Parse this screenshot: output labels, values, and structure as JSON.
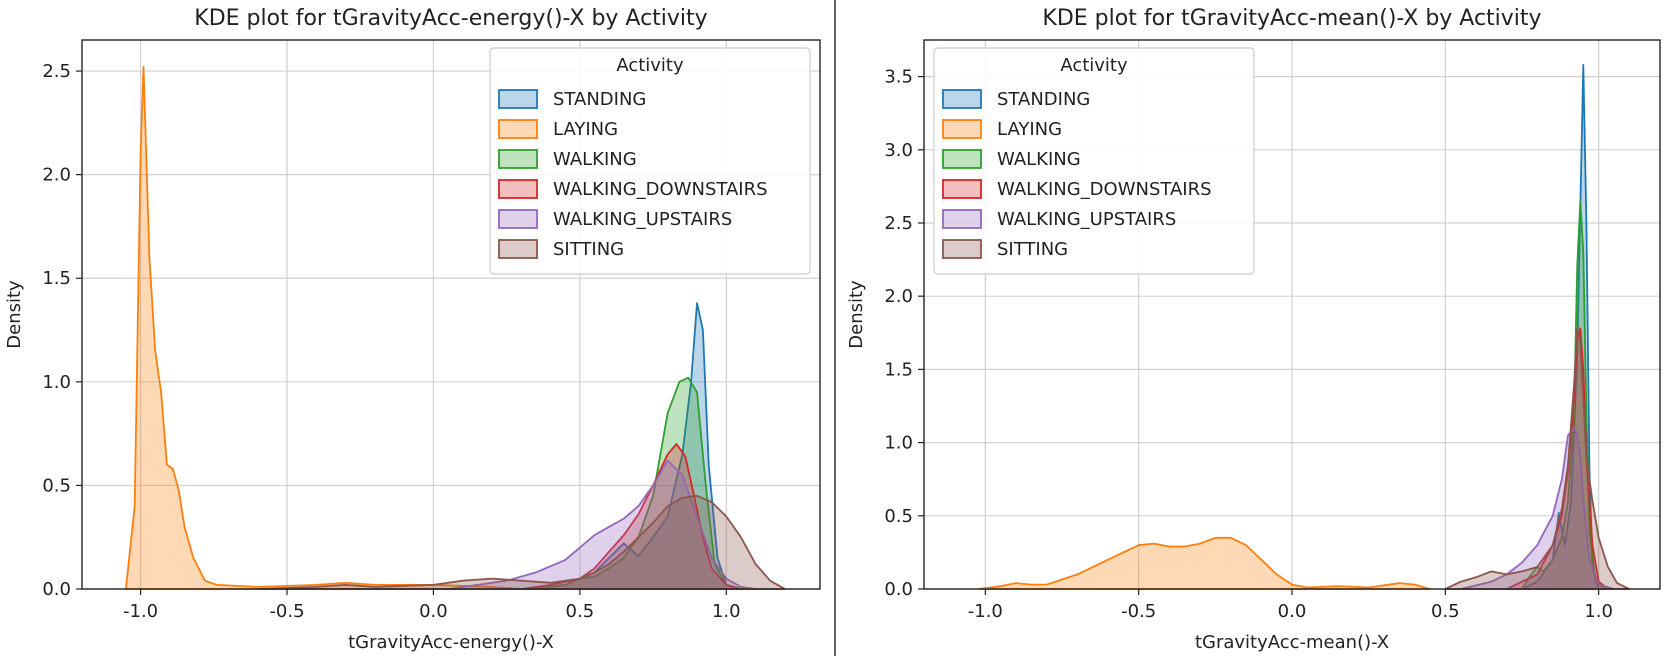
{
  "chart_data": [
    {
      "type": "area",
      "title": "KDE plot for tGravityAcc-energy()-X by Activity",
      "xlabel": "tGravityAcc-energy()-X",
      "ylabel": "Density",
      "xlim": [
        -1.2,
        1.32
      ],
      "ylim": [
        0,
        2.65
      ],
      "xticks": [
        -1.0,
        -0.5,
        0.0,
        0.5,
        1.0
      ],
      "xtick_labels": [
        "-1.0",
        "-0.5",
        "0.0",
        "0.5",
        "1.0"
      ],
      "yticks": [
        0.0,
        0.5,
        1.0,
        1.5,
        2.0,
        2.5
      ],
      "ytick_labels": [
        "0.0",
        "0.5",
        "1.0",
        "1.5",
        "2.0",
        "2.5"
      ],
      "grid": true,
      "legend": {
        "title": "Activity",
        "placement": "top-right"
      },
      "series": [
        {
          "name": "STANDING",
          "color": "#1f77b4",
          "x": [
            0.3,
            0.45,
            0.55,
            0.6,
            0.65,
            0.7,
            0.75,
            0.8,
            0.85,
            0.88,
            0.9,
            0.92,
            0.94,
            0.97,
            1.0,
            1.05
          ],
          "y": [
            0,
            0.02,
            0.08,
            0.15,
            0.22,
            0.16,
            0.25,
            0.35,
            0.65,
            1.0,
            1.38,
            1.25,
            0.6,
            0.15,
            0.02,
            0
          ]
        },
        {
          "name": "LAYING",
          "color": "#ff7f0e",
          "x": [
            -1.05,
            -1.02,
            -1.0,
            -0.99,
            -0.97,
            -0.95,
            -0.93,
            -0.91,
            -0.89,
            -0.87,
            -0.85,
            -0.82,
            -0.78,
            -0.74,
            -0.6,
            -0.4,
            -0.3,
            -0.2,
            0.0,
            0.2,
            0.3
          ],
          "y": [
            0,
            0.4,
            2.1,
            2.52,
            1.6,
            1.15,
            0.95,
            0.6,
            0.58,
            0.48,
            0.3,
            0.15,
            0.04,
            0.02,
            0.01,
            0.02,
            0.03,
            0.02,
            0.02,
            0.01,
            0
          ]
        },
        {
          "name": "WALKING",
          "color": "#2ca02c",
          "x": [
            0.35,
            0.45,
            0.5,
            0.55,
            0.6,
            0.65,
            0.7,
            0.75,
            0.8,
            0.84,
            0.87,
            0.9,
            0.93,
            0.96,
            1.0,
            1.05
          ],
          "y": [
            0,
            0.02,
            0.05,
            0.06,
            0.1,
            0.15,
            0.25,
            0.45,
            0.85,
            1.0,
            1.02,
            0.95,
            0.5,
            0.12,
            0.02,
            0
          ]
        },
        {
          "name": "WALKING_DOWNSTAIRS",
          "color": "#d62728",
          "x": [
            0.3,
            0.4,
            0.5,
            0.55,
            0.6,
            0.65,
            0.7,
            0.75,
            0.8,
            0.83,
            0.86,
            0.89,
            0.92,
            0.95,
            1.0,
            1.05
          ],
          "y": [
            0,
            0.02,
            0.05,
            0.1,
            0.18,
            0.26,
            0.36,
            0.5,
            0.65,
            0.7,
            0.64,
            0.45,
            0.25,
            0.1,
            0.02,
            0
          ]
        },
        {
          "name": "WALKING_UPSTAIRS",
          "color": "#9467bd",
          "x": [
            0.05,
            0.15,
            0.25,
            0.35,
            0.45,
            0.5,
            0.55,
            0.6,
            0.65,
            0.7,
            0.75,
            0.8,
            0.85,
            0.9,
            0.95,
            1.0,
            1.05,
            1.1
          ],
          "y": [
            0,
            0.02,
            0.04,
            0.08,
            0.14,
            0.2,
            0.26,
            0.3,
            0.34,
            0.4,
            0.5,
            0.62,
            0.55,
            0.35,
            0.15,
            0.05,
            0.01,
            0
          ]
        },
        {
          "name": "SITTING",
          "color": "#8c564b",
          "x": [
            -0.6,
            -0.4,
            -0.3,
            -0.2,
            0.0,
            0.1,
            0.2,
            0.3,
            0.4,
            0.5,
            0.55,
            0.6,
            0.65,
            0.7,
            0.75,
            0.8,
            0.85,
            0.9,
            0.95,
            1.0,
            1.05,
            1.1,
            1.15,
            1.2
          ],
          "y": [
            0,
            0.01,
            0.02,
            0.01,
            0.02,
            0.04,
            0.05,
            0.04,
            0.03,
            0.05,
            0.08,
            0.12,
            0.18,
            0.25,
            0.32,
            0.4,
            0.44,
            0.45,
            0.42,
            0.35,
            0.25,
            0.12,
            0.04,
            0
          ]
        }
      ]
    },
    {
      "type": "area",
      "title": "KDE plot for tGravityAcc-mean()-X by Activity",
      "xlabel": "tGravityAcc-mean()-X",
      "ylabel": "Density",
      "xlim": [
        -1.2,
        1.2
      ],
      "ylim": [
        0,
        3.75
      ],
      "xticks": [
        -1.0,
        -0.5,
        0.0,
        0.5,
        1.0
      ],
      "xtick_labels": [
        "-1.0",
        "-0.5",
        "0.0",
        "0.5",
        "1.0"
      ],
      "yticks": [
        0.0,
        0.5,
        1.0,
        1.5,
        2.0,
        2.5,
        3.0,
        3.5
      ],
      "ytick_labels": [
        "0.0",
        "0.5",
        "1.0",
        "1.5",
        "2.0",
        "2.5",
        "3.0",
        "3.5"
      ],
      "grid": true,
      "legend": {
        "title": "Activity",
        "placement": "top-left"
      },
      "series": [
        {
          "name": "STANDING",
          "color": "#1f77b4",
          "x": [
            0.75,
            0.8,
            0.85,
            0.87,
            0.89,
            0.91,
            0.93,
            0.94,
            0.95,
            0.96,
            0.97,
            0.98,
            1.0
          ],
          "y": [
            0,
            0.05,
            0.2,
            0.52,
            0.3,
            0.6,
            1.6,
            2.6,
            3.58,
            2.5,
            0.8,
            0.15,
            0
          ]
        },
        {
          "name": "LAYING",
          "color": "#ff7f0e",
          "x": [
            -1.02,
            -0.95,
            -0.9,
            -0.85,
            -0.8,
            -0.7,
            -0.6,
            -0.5,
            -0.45,
            -0.4,
            -0.35,
            -0.3,
            -0.25,
            -0.2,
            -0.15,
            -0.1,
            -0.05,
            0.0,
            0.05,
            0.15,
            0.25,
            0.35,
            0.4,
            0.45
          ],
          "y": [
            0,
            0.02,
            0.04,
            0.03,
            0.03,
            0.1,
            0.2,
            0.3,
            0.31,
            0.29,
            0.29,
            0.31,
            0.35,
            0.35,
            0.3,
            0.2,
            0.1,
            0.03,
            0.01,
            0.02,
            0.01,
            0.04,
            0.03,
            0
          ]
        },
        {
          "name": "WALKING",
          "color": "#2ca02c",
          "x": [
            0.75,
            0.78,
            0.8,
            0.82,
            0.85,
            0.88,
            0.9,
            0.92,
            0.93,
            0.94,
            0.95,
            0.96,
            0.97,
            0.99,
            1.02
          ],
          "y": [
            0,
            0.1,
            0.15,
            0.12,
            0.2,
            0.35,
            0.6,
            1.2,
            2.2,
            2.65,
            2.3,
            1.2,
            0.4,
            0.05,
            0
          ]
        },
        {
          "name": "WALKING_DOWNSTAIRS",
          "color": "#d62728",
          "x": [
            0.7,
            0.8,
            0.85,
            0.88,
            0.9,
            0.92,
            0.93,
            0.94,
            0.95,
            0.96,
            0.98,
            1.0,
            1.03
          ],
          "y": [
            0,
            0.1,
            0.3,
            0.5,
            0.8,
            1.3,
            1.7,
            1.78,
            1.5,
            0.9,
            0.3,
            0.05,
            0
          ]
        },
        {
          "name": "WALKING_UPSTAIRS",
          "color": "#9467bd",
          "x": [
            0.55,
            0.65,
            0.7,
            0.75,
            0.8,
            0.85,
            0.88,
            0.9,
            0.92,
            0.93,
            0.94,
            0.95,
            0.97,
            1.0,
            1.05
          ],
          "y": [
            0,
            0.05,
            0.1,
            0.18,
            0.3,
            0.5,
            0.75,
            1.05,
            1.1,
            1.05,
            0.9,
            0.6,
            0.2,
            0.03,
            0
          ]
        },
        {
          "name": "SITTING",
          "color": "#8c564b",
          "x": [
            0.5,
            0.55,
            0.6,
            0.65,
            0.7,
            0.75,
            0.8,
            0.85,
            0.88,
            0.9,
            0.92,
            0.93,
            0.94,
            0.95,
            0.96,
            0.98,
            1.0,
            1.03,
            1.06,
            1.1
          ],
          "y": [
            0,
            0.05,
            0.08,
            0.12,
            0.1,
            0.12,
            0.15,
            0.3,
            0.55,
            0.85,
            1.4,
            1.78,
            1.7,
            1.3,
            0.9,
            0.6,
            0.35,
            0.15,
            0.04,
            0
          ]
        }
      ]
    }
  ]
}
